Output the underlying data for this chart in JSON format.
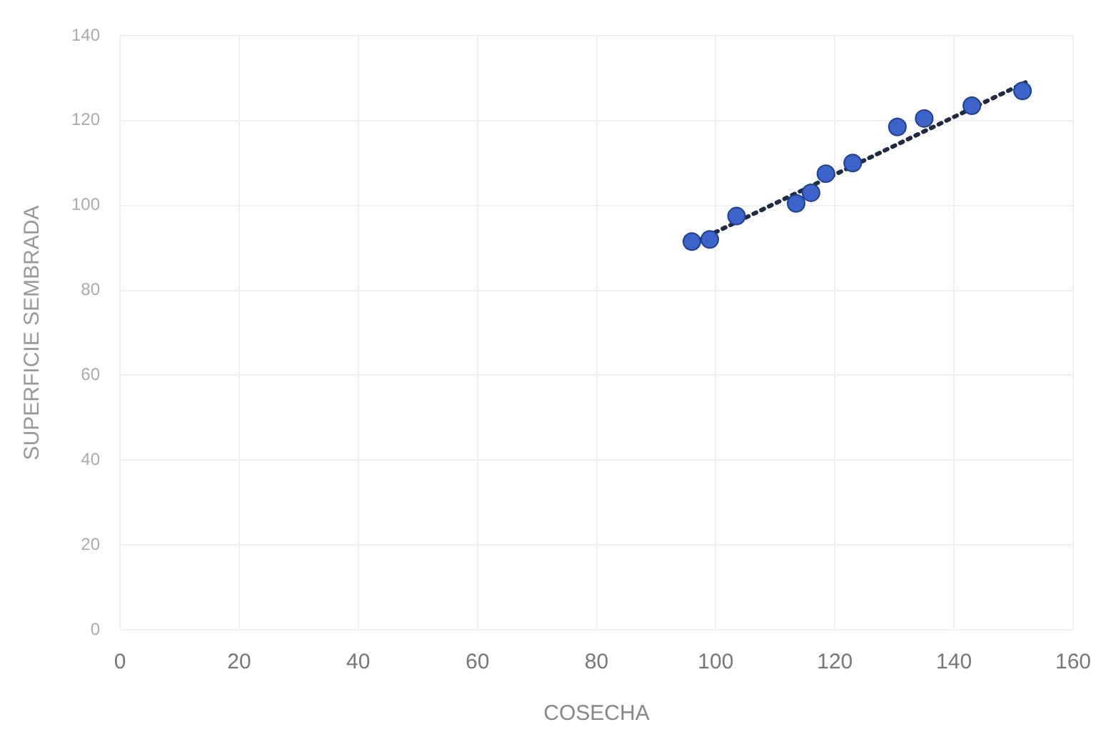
{
  "chart_data": {
    "type": "scatter",
    "xlabel": "COSECHA",
    "ylabel": "SUPERFICIE SEMBRADA",
    "xlim": [
      0,
      160
    ],
    "xticks": [
      0,
      20,
      40,
      60,
      80,
      100,
      120,
      140,
      160
    ],
    "ylim": [
      0,
      140
    ],
    "yticks": [
      0,
      20,
      40,
      60,
      80,
      100,
      120,
      140
    ],
    "grid": true,
    "marker": "circle",
    "series": [
      {
        "color": "#3b63c9",
        "x": [
          96,
          99,
          103.5,
          113.5,
          116,
          118.5,
          123,
          130.5,
          135,
          143,
          151.5
        ],
        "values": [
          91.5,
          92,
          97.5,
          100.5,
          103,
          107.5,
          110,
          118.5,
          120.5,
          123.5,
          127
        ]
      },
      {
        "type": "line",
        "line_style": "dotted",
        "marker": "none",
        "color": "#1f2a44",
        "x": [
          96,
          152
        ],
        "values": [
          91,
          129
        ]
      }
    ]
  }
}
